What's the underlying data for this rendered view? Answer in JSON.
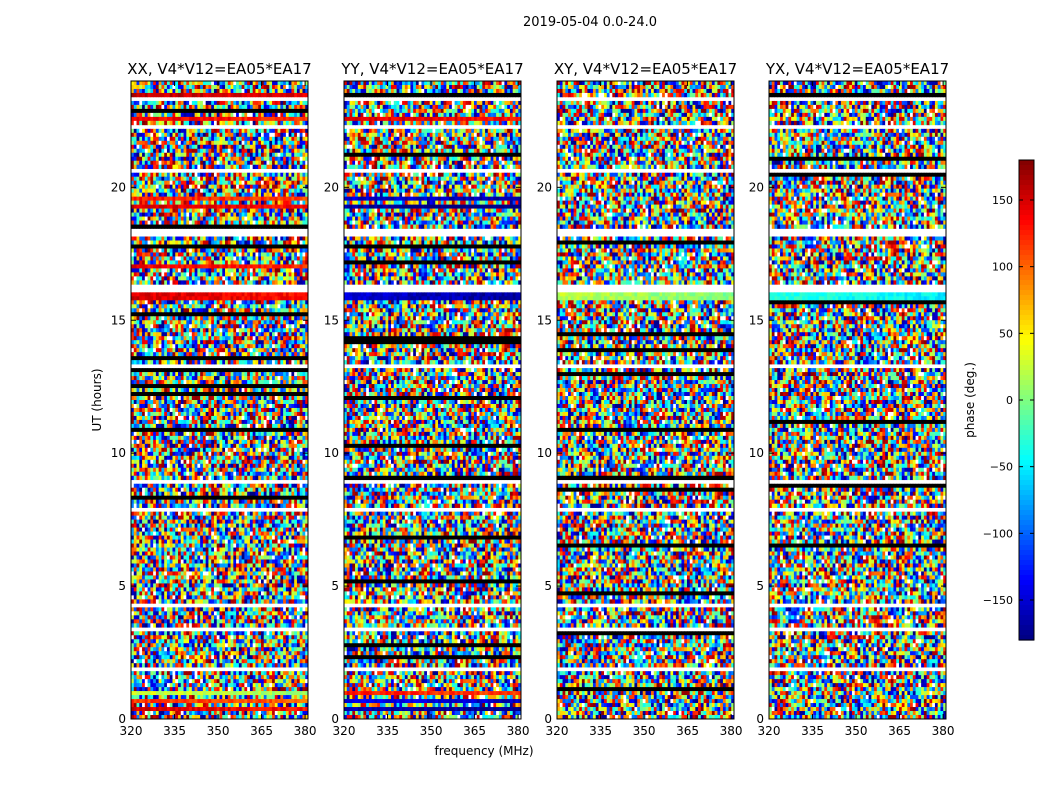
{
  "chart_data": {
    "type": "heatmap",
    "title": "2019-05-04 0.0-24.0",
    "xlabel": "frequency (MHz)",
    "ylabel": "UT (hours)",
    "colorbar_label": "phase (deg.)",
    "colormap": "jet",
    "grid": false,
    "xlim": [
      320,
      381
    ],
    "ylim": [
      0,
      24
    ],
    "x_ticks": [
      320,
      335,
      350,
      365,
      380
    ],
    "y_ticks": [
      0,
      5,
      10,
      15,
      20
    ],
    "clim": [
      -180,
      180
    ],
    "colorbar_ticks": [
      -150,
      -100,
      -50,
      0,
      50,
      100,
      150
    ],
    "panels": [
      {
        "title": "XX, V4*V12=EA05*EA17",
        "polarization": "XX"
      },
      {
        "title": "YY, V4*V12=EA05*EA17",
        "polarization": "YY"
      },
      {
        "title": "XY, V4*V12=EA05*EA17",
        "polarization": "XY"
      },
      {
        "title": "YX, V4*V12=EA05*EA17",
        "polarization": "YX"
      }
    ],
    "flagged_gaps_ut": [
      1.9,
      3.4,
      4.3,
      7.9,
      8.9,
      13.3,
      16.2,
      18.3,
      20.6,
      22.3,
      23.3
    ],
    "coherent_bands": [
      {
        "panel": "XX",
        "ut": 0.4,
        "phase": 150
      },
      {
        "panel": "XX",
        "ut": 0.7,
        "phase": 120
      },
      {
        "panel": "XX",
        "ut": 1.0,
        "phase": 30
      },
      {
        "panel": "XX",
        "ut": 15.9,
        "phase": 150
      },
      {
        "panel": "XX",
        "ut": 17.0,
        "phase": 140
      },
      {
        "panel": "XX",
        "ut": 19.3,
        "phase": 150
      },
      {
        "panel": "XX",
        "ut": 19.6,
        "phase": 130
      },
      {
        "panel": "XX",
        "ut": 23.5,
        "phase": 160
      },
      {
        "panel": "XX",
        "ut": 22.6,
        "phase": 140
      },
      {
        "panel": "YY",
        "ut": 0.4,
        "phase": -160
      },
      {
        "panel": "YY",
        "ut": 0.7,
        "phase": -140
      },
      {
        "panel": "YY",
        "ut": 1.0,
        "phase": 130
      },
      {
        "panel": "YY",
        "ut": 15.9,
        "phase": -150
      },
      {
        "panel": "YY",
        "ut": 18.3,
        "phase": -160
      },
      {
        "panel": "YY",
        "ut": 19.3,
        "phase": -170
      },
      {
        "panel": "YY",
        "ut": 19.6,
        "phase": -150
      },
      {
        "panel": "YY",
        "ut": 23.5,
        "phase": -160
      },
      {
        "panel": "YY",
        "ut": 22.6,
        "phase": 150
      },
      {
        "panel": "XY",
        "ut": 15.9,
        "phase": 20
      },
      {
        "panel": "YX",
        "ut": 15.9,
        "phase": -30
      }
    ]
  }
}
